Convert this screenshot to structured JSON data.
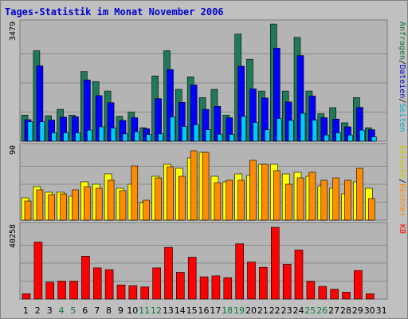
{
  "title": "Tages-Statistik im Monat November 2006",
  "colors": {
    "title": "#0000cc",
    "frame_bg": "#c0c0c0",
    "plot_bg": "#b4b4b4",
    "grid": "#8a8a8a",
    "anfragen": "#1f7a5a",
    "dateien": "#0000ff",
    "seiten": "#00ccff",
    "besuche": "#ffff00",
    "rechner": "#ff8c00",
    "kb": "#ff0000",
    "weekday_label": "#000000",
    "weekend_label": "#0a7a3a"
  },
  "right_labels": {
    "top": [
      {
        "text": "Anfragen",
        "color": "#0a7a3a"
      },
      {
        "text": "/",
        "color": "#000000"
      },
      {
        "text": "Dateien",
        "color": "#0000cc"
      },
      {
        "text": "/",
        "color": "#000000"
      },
      {
        "text": "Seiten",
        "color": "#00aacc"
      }
    ],
    "middle": [
      {
        "text": "Besuche",
        "color": "#cccc00"
      },
      {
        "text": "/",
        "color": "#000000"
      },
      {
        "text": "Rechner",
        "color": "#ff8c00"
      }
    ],
    "bottom": [
      {
        "text": "KB",
        "color": "#ff0000"
      }
    ]
  },
  "chart_data": [
    {
      "panel": "top",
      "type": "bar",
      "ymax_label": "3479",
      "ymax": 3479,
      "categories": [
        "1",
        "2",
        "3",
        "4",
        "5",
        "6",
        "7",
        "8",
        "9",
        "10",
        "11",
        "12",
        "13",
        "14",
        "15",
        "16",
        "17",
        "18",
        "19",
        "20",
        "21",
        "22",
        "23",
        "24",
        "25",
        "26",
        "27",
        "28",
        "29",
        "30",
        "31"
      ],
      "weekend": [
        4,
        5,
        11,
        12,
        18,
        19,
        25,
        26
      ],
      "series": [
        {
          "name": "Anfragen",
          "values": [
            780,
            2700,
            760,
            950,
            780,
            2080,
            1780,
            1500,
            740,
            870,
            400,
            1950,
            2700,
            1550,
            1920,
            1300,
            1550,
            780,
            3200,
            2450,
            1500,
            3500,
            1500,
            3100,
            1500,
            820,
            1000,
            550,
            1300,
            400,
            null
          ]
        },
        {
          "name": "Dateien",
          "values": [
            640,
            2250,
            630,
            720,
            730,
            1830,
            1360,
            1150,
            620,
            700,
            370,
            1270,
            2140,
            1160,
            1680,
            950,
            1040,
            700,
            2240,
            1560,
            1290,
            2780,
            1170,
            2560,
            1350,
            700,
            660,
            430,
            1010,
            340,
            null
          ]
        },
        {
          "name": "Seiten",
          "values": [
            580,
            580,
            250,
            250,
            250,
            330,
            430,
            390,
            220,
            280,
            200,
            220,
            720,
            440,
            490,
            340,
            210,
            200,
            740,
            560,
            340,
            680,
            620,
            830,
            630,
            180,
            250,
            180,
            330,
            130,
            null
          ]
        }
      ]
    },
    {
      "panel": "middle",
      "type": "bar",
      "ymax_label": "90",
      "ymax": 90,
      "categories": [
        "1",
        "2",
        "3",
        "4",
        "5",
        "6",
        "7",
        "8",
        "9",
        "10",
        "11",
        "12",
        "13",
        "14",
        "15",
        "16",
        "17",
        "18",
        "19",
        "20",
        "21",
        "22",
        "23",
        "24",
        "25",
        "26",
        "27",
        "28",
        "29",
        "30",
        "31"
      ],
      "weekend": [
        4,
        5,
        11,
        12,
        18,
        19,
        25,
        26
      ],
      "series": [
        {
          "name": "Besuche",
          "values": [
            28,
            42,
            35,
            35,
            30,
            48,
            45,
            58,
            40,
            45,
            22,
            55,
            70,
            65,
            78,
            85,
            55,
            48,
            58,
            56,
            70,
            70,
            58,
            60,
            55,
            43,
            40,
            33,
            48,
            40,
            null
          ]
        },
        {
          "name": "Rechner",
          "values": [
            24,
            38,
            32,
            33,
            38,
            42,
            40,
            50,
            37,
            68,
            25,
            53,
            67,
            55,
            87,
            85,
            47,
            50,
            50,
            75,
            70,
            62,
            45,
            53,
            60,
            50,
            53,
            50,
            65,
            27,
            null
          ]
        }
      ]
    },
    {
      "panel": "bottom",
      "type": "bar",
      "ymax_label": "40258",
      "ymax": 40258,
      "categories": [
        "1",
        "2",
        "3",
        "4",
        "5",
        "6",
        "7",
        "8",
        "9",
        "10",
        "11",
        "12",
        "13",
        "14",
        "15",
        "16",
        "17",
        "18",
        "19",
        "20",
        "21",
        "22",
        "23",
        "24",
        "25",
        "26",
        "27",
        "28",
        "29",
        "30",
        "31"
      ],
      "weekend": [
        4,
        5,
        11,
        12,
        18,
        19,
        25,
        26
      ],
      "series": [
        {
          "name": "KB",
          "values": [
            3000,
            32000,
            9500,
            10000,
            10000,
            24000,
            17500,
            16500,
            7900,
            7500,
            6800,
            17500,
            29000,
            15000,
            23500,
            12500,
            13000,
            12000,
            31000,
            20800,
            17800,
            40258,
            19500,
            27500,
            10000,
            7100,
            5500,
            3900,
            16000,
            3000,
            null
          ]
        }
      ]
    }
  ]
}
